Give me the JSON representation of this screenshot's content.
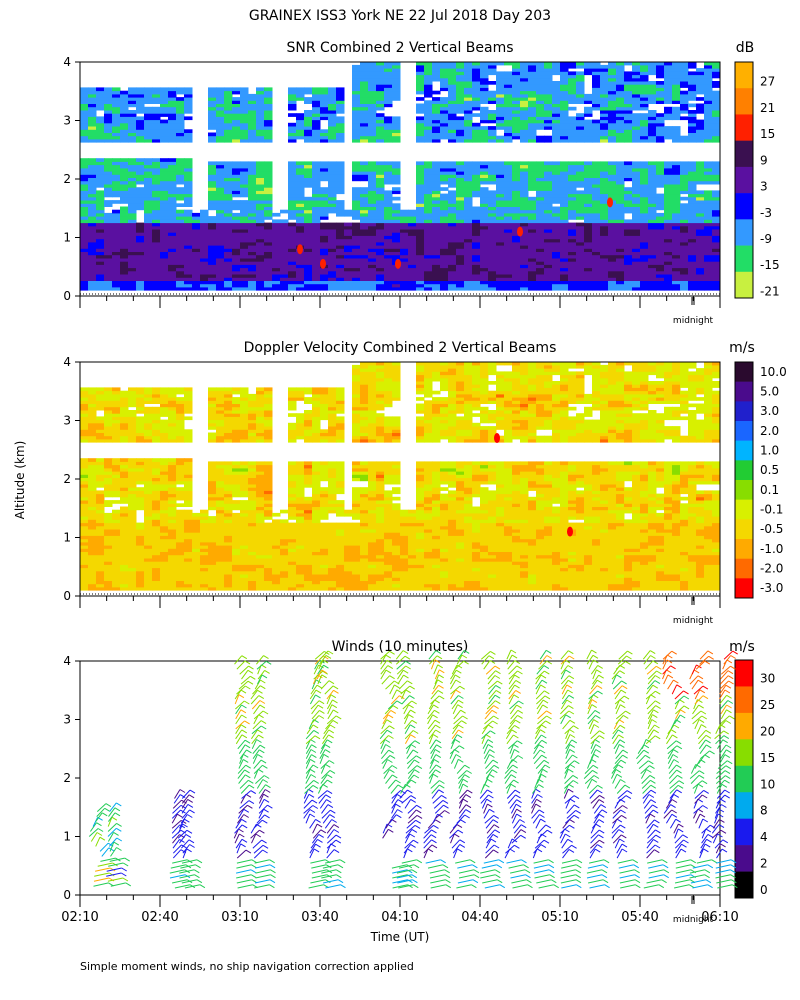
{
  "figure": {
    "title": "GRAINEX ISS3 York NE  22 Jul 2018 Day 203",
    "ylabel": "Altitude (km)",
    "xlabel": "Time (UT)",
    "footnote": "Simple moment winds, no ship navigation correction applied",
    "midnight_label": "midnight",
    "x_ticks": [
      "02:10",
      "02:40",
      "03:10",
      "03:40",
      "04:10",
      "04:40",
      "05:10",
      "05:40",
      "06:10"
    ]
  },
  "chart_data": [
    {
      "type": "heatmap",
      "title": "SNR Combined 2 Vertical Beams",
      "unit": "dB",
      "ylim": [
        0,
        4
      ],
      "y_ticks": [
        "0",
        "1",
        "2",
        "3",
        "4"
      ],
      "xlim": [
        "02:10",
        "06:10"
      ],
      "colorbar_labels": [
        "27",
        "21",
        "15",
        "9",
        "3",
        "-3",
        "-9",
        "-15",
        "-21"
      ],
      "colorbar_colors": [
        "#ffb000",
        "#ff8000",
        "#ff2000",
        "#3a1050",
        "#5a10a0",
        "#0000ff",
        "#3399ff",
        "#22dd66",
        "#c8f040"
      ],
      "range": [
        -24,
        30
      ]
    },
    {
      "type": "heatmap",
      "title": "Doppler Velocity Combined 2 Vertical Beams",
      "unit": "m/s",
      "ylim": [
        0,
        4
      ],
      "y_ticks": [
        "0",
        "1",
        "2",
        "3",
        "4"
      ],
      "xlim": [
        "02:10",
        "06:10"
      ],
      "colorbar_labels": [
        "10.0",
        "5.0",
        "3.0",
        "2.0",
        "1.0",
        "0.5",
        "0.1",
        "-0.1",
        "-0.5",
        "-1.0",
        "-2.0",
        "-3.0"
      ],
      "colorbar_colors": [
        "#2a0a2e",
        "#4a0b8c",
        "#2020cc",
        "#1a66ff",
        "#00b4ff",
        "#22cc33",
        "#88dd00",
        "#d8f000",
        "#f4d800",
        "#ffaa00",
        "#ff6a00",
        "#ff0000"
      ]
    },
    {
      "type": "scatter",
      "title": "Winds (10 minutes)",
      "unit": "m/s",
      "ylim": [
        0,
        4
      ],
      "y_ticks": [
        "0",
        "1",
        "2",
        "3",
        "4"
      ],
      "xlim": [
        "02:10",
        "06:10"
      ],
      "colorbar_labels": [
        "30",
        "25",
        "20",
        "15",
        "10",
        "8",
        "4",
        "2",
        "0"
      ],
      "colorbar_colors": [
        "#ff0000",
        "#ff6a00",
        "#ffaa00",
        "#88dd00",
        "#22cc55",
        "#00aaee",
        "#1a1aee",
        "#4a0b8c",
        "#000000"
      ],
      "profile_times": [
        "02:16",
        "02:21",
        "02:44",
        "02:49",
        "03:09",
        "03:15",
        "03:36",
        "03:41",
        "04:05",
        "04:11",
        "04:21",
        "04:31",
        "04:41",
        "04:51",
        "05:01",
        "05:11",
        "05:21",
        "05:31",
        "05:41",
        "05:51",
        "06:01",
        "06:09"
      ]
    }
  ]
}
